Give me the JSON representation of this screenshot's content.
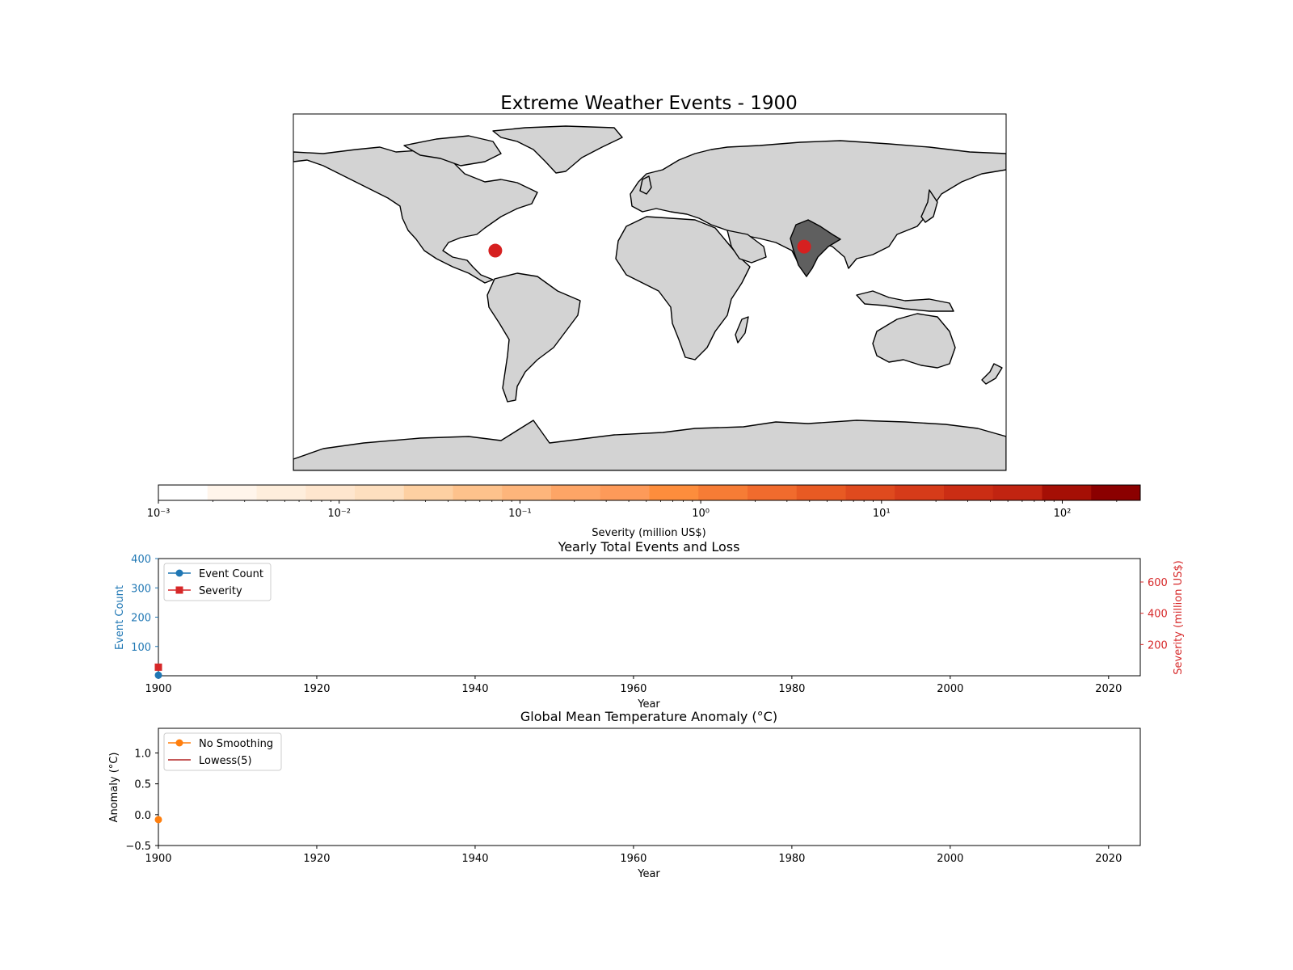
{
  "map": {
    "title": "Extreme Weather Events - 1900",
    "land_color": "#d3d3d3",
    "highlight_country_color": "#5f5f5f",
    "event_marker_color": "#d62020",
    "events": [
      {
        "lon": -78,
        "lat": 21
      },
      {
        "lon": 78,
        "lat": 23
      }
    ]
  },
  "colorbar": {
    "label": "Severity (million US$)",
    "scale": "log",
    "ticks": [
      "10⁻³",
      "10⁻²",
      "10⁻¹",
      "10⁰",
      "10¹",
      "10²"
    ],
    "range": [
      0.001,
      270
    ],
    "colors": [
      "#ffffff",
      "#fff5eb",
      "#feeedc",
      "#fee6ce",
      "#fddfbf",
      "#fdd0a2",
      "#fdc28c",
      "#fdb57b",
      "#fda566",
      "#fd9a59",
      "#fd8d3c",
      "#f67c35",
      "#f16b2d",
      "#e85a23",
      "#df4a1e",
      "#d63b19",
      "#cb2d14",
      "#c12411",
      "#a50f05",
      "#8b0000"
    ]
  },
  "chart_data": [
    {
      "type": "line",
      "title": "Yearly Total Events and Loss",
      "xlabel": "Year",
      "ylabel": "Event Count",
      "y2label": "Severity (million US$)",
      "xlim": [
        1900,
        2024
      ],
      "ylim": [
        0,
        400
      ],
      "y2lim": [
        0,
        750
      ],
      "xticks": [
        "1900",
        "1920",
        "1940",
        "1960",
        "1980",
        "2000",
        "2020"
      ],
      "yticks": [
        "100",
        "200",
        "300",
        "400"
      ],
      "y2ticks": [
        "200",
        "400",
        "600"
      ],
      "series": [
        {
          "name": "Event Count",
          "axis": "left",
          "color": "#1f77b4",
          "marker": "circle",
          "x": [
            1900
          ],
          "y": [
            2
          ]
        },
        {
          "name": "Severity",
          "axis": "right",
          "color": "#d62728",
          "marker": "square",
          "x": [
            1900
          ],
          "y": [
            55
          ]
        }
      ],
      "legend": "upper-left",
      "grid": false
    },
    {
      "type": "line",
      "title": "Global Mean Temperature Anomaly (°C)",
      "xlabel": "Year",
      "ylabel": "Anomaly (°C)",
      "xlim": [
        1900,
        2024
      ],
      "ylim": [
        -0.5,
        1.4
      ],
      "xticks": [
        "1900",
        "1920",
        "1940",
        "1960",
        "1980",
        "2000",
        "2020"
      ],
      "yticks": [
        "−0.5",
        "0.0",
        "0.5",
        "1.0"
      ],
      "series": [
        {
          "name": "No Smoothing",
          "color": "#ff7f0e",
          "marker": "circle",
          "x": [
            1900
          ],
          "y": [
            -0.08
          ]
        },
        {
          "name": "Lowess(5)",
          "color": "#b22222",
          "marker": "none",
          "x": [],
          "y": []
        }
      ],
      "legend": "upper-left",
      "grid": false
    }
  ]
}
